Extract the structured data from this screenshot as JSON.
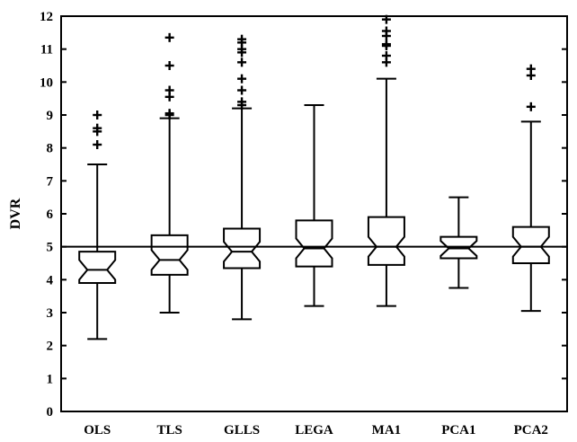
{
  "chart_data": {
    "type": "boxplot",
    "title": "",
    "xlabel": "",
    "ylabel": "DVR",
    "ylim": [
      0,
      12
    ],
    "yticks": [
      0,
      1,
      2,
      3,
      4,
      5,
      6,
      7,
      8,
      9,
      10,
      11,
      12
    ],
    "reference_line": 5,
    "notched": true,
    "grid": false,
    "categories": [
      "OLS",
      "TLS",
      "GLLS",
      "LEGA",
      "MA1",
      "PCA1",
      "PCA2"
    ],
    "boxes": [
      {
        "name": "OLS",
        "whisker_low": 2.2,
        "q1": 3.9,
        "median": 4.3,
        "q3": 4.85,
        "whisker_high": 7.5,
        "outliers": [
          8.1,
          8.5,
          8.6,
          9.0
        ]
      },
      {
        "name": "TLS",
        "whisker_low": 3.0,
        "q1": 4.15,
        "median": 4.6,
        "q3": 5.35,
        "whisker_high": 8.9,
        "outliers": [
          9.0,
          9.05,
          9.55,
          9.75,
          10.5,
          11.35
        ]
      },
      {
        "name": "GLLS",
        "whisker_low": 2.8,
        "q1": 4.35,
        "median": 4.85,
        "q3": 5.55,
        "whisker_high": 9.2,
        "outliers": [
          9.3,
          9.4,
          9.75,
          10.1,
          10.6,
          10.9,
          11.0,
          11.2,
          11.3
        ]
      },
      {
        "name": "LEGA",
        "whisker_low": 3.2,
        "q1": 4.4,
        "median": 4.95,
        "q3": 5.8,
        "whisker_high": 9.3,
        "outliers": []
      },
      {
        "name": "MA1",
        "whisker_low": 3.2,
        "q1": 4.45,
        "median": 5.0,
        "q3": 5.9,
        "whisker_high": 10.1,
        "outliers": [
          10.6,
          10.8,
          11.1,
          11.15,
          11.4,
          11.55,
          11.9
        ]
      },
      {
        "name": "PCA1",
        "whisker_low": 3.75,
        "q1": 4.65,
        "median": 4.95,
        "q3": 5.3,
        "whisker_high": 6.5,
        "outliers": []
      },
      {
        "name": "PCA2",
        "whisker_low": 3.05,
        "q1": 4.5,
        "median": 5.0,
        "q3": 5.6,
        "whisker_high": 8.8,
        "outliers": [
          9.25,
          10.2,
          10.4
        ]
      }
    ]
  }
}
